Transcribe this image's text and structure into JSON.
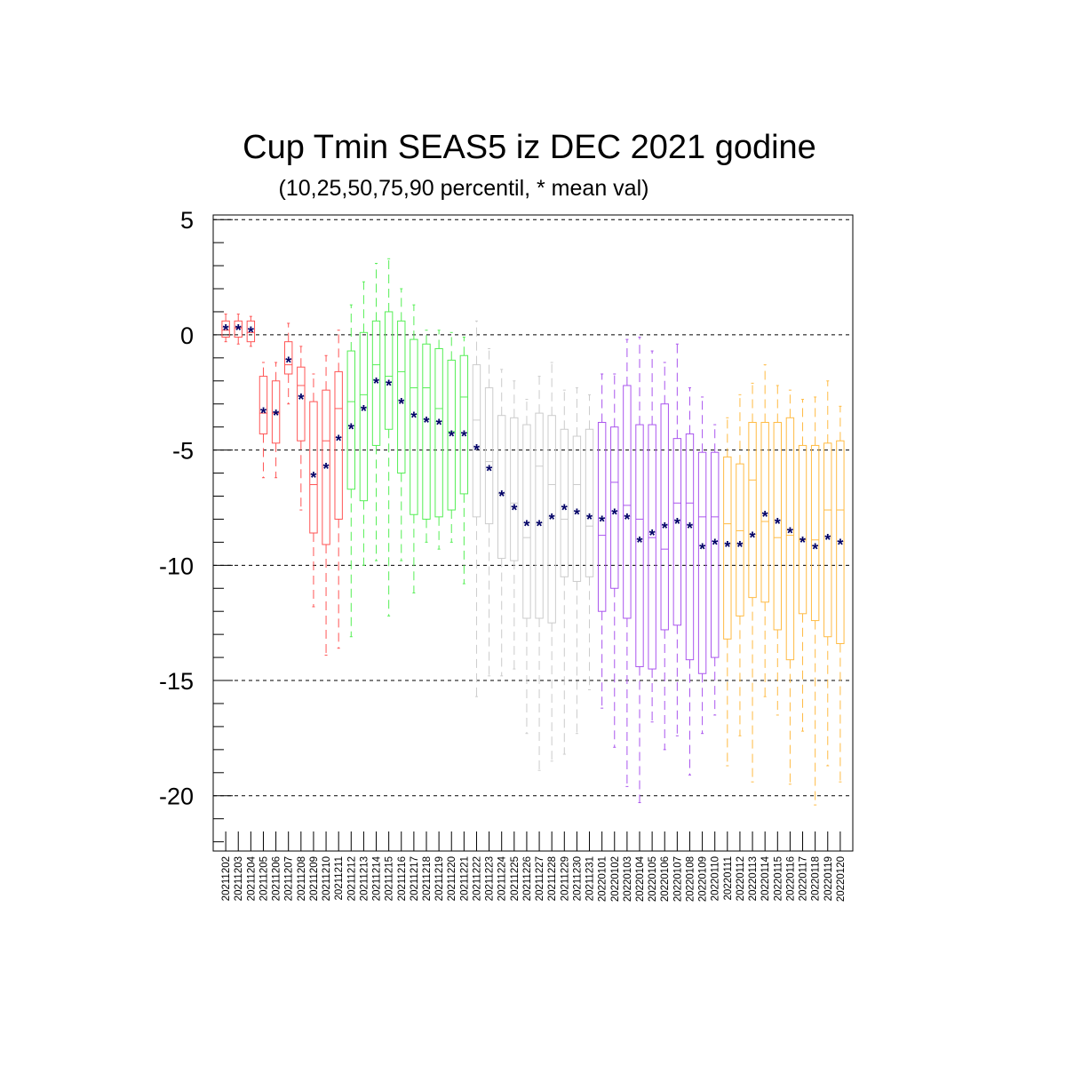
{
  "chart_data": {
    "type": "boxplot",
    "title": "Cup Tmin SEAS5 iz DEC 2021 godine",
    "subtitle": "(10,25,50,75,90 percentil, * mean val)",
    "ylim": [
      -22.4,
      5.2
    ],
    "yticks": [
      5,
      0,
      -5,
      -10,
      -15,
      -20
    ],
    "ytick_labels": [
      "5",
      "0",
      "-5",
      "-10",
      "-15",
      "-20"
    ],
    "grid": "dashed horizontal at major ticks",
    "mean_marker": "*",
    "mean_color": "#000066",
    "categories": [
      "20211202",
      "20211203",
      "20211204",
      "20211205",
      "20211206",
      "20211207",
      "20211208",
      "20211209",
      "20211210",
      "20211211",
      "20211212",
      "20211213",
      "20211214",
      "20211215",
      "20211216",
      "20211217",
      "20211218",
      "20211219",
      "20211220",
      "20211221",
      "20211222",
      "20211223",
      "20211224",
      "20211225",
      "20211226",
      "20211227",
      "20211228",
      "20211229",
      "20211230",
      "20211231",
      "20220101",
      "20220102",
      "20220103",
      "20220104",
      "20220105",
      "20220106",
      "20220107",
      "20220108",
      "20220109",
      "20220110",
      "20220111",
      "20220112",
      "20220113",
      "20220114",
      "20220115",
      "20220116",
      "20220117",
      "20220118",
      "20220119",
      "20220120"
    ],
    "colors": [
      "#ff5555",
      "#ff5555",
      "#ff5555",
      "#ff5555",
      "#ff5555",
      "#ff5555",
      "#ff5555",
      "#ff5555",
      "#ff5555",
      "#ff5555",
      "#55ee55",
      "#55ee55",
      "#55ee55",
      "#55ee55",
      "#55ee55",
      "#55ee55",
      "#55ee55",
      "#55ee55",
      "#55ee55",
      "#55ee55",
      "#cccccc",
      "#cccccc",
      "#cccccc",
      "#cccccc",
      "#cccccc",
      "#cccccc",
      "#cccccc",
      "#cccccc",
      "#cccccc",
      "#cccccc",
      "#aa55ee",
      "#aa55ee",
      "#aa55ee",
      "#aa55ee",
      "#aa55ee",
      "#aa55ee",
      "#aa55ee",
      "#aa55ee",
      "#aa55ee",
      "#aa55ee",
      "#ffbb44",
      "#ffbb44",
      "#ffbb44",
      "#ffbb44",
      "#ffbb44",
      "#ffbb44",
      "#ffbb44",
      "#ffbb44",
      "#ffbb44",
      "#ffbb44"
    ],
    "p10": [
      -0.3,
      -0.4,
      -0.5,
      -6.2,
      -6.2,
      -3.0,
      -7.6,
      -11.8,
      -13.9,
      -13.6,
      -13.1,
      -10.0,
      -9.8,
      -12.2,
      -9.8,
      -11.2,
      -9.0,
      -9.3,
      -9.0,
      -10.8,
      -15.7,
      -14.8,
      -14.8,
      -14.5,
      -17.3,
      -18.9,
      -18.5,
      -18.2,
      -17.3,
      -15.4,
      -16.2,
      -17.9,
      -19.6,
      -20.3,
      -16.8,
      -18.0,
      -17.4,
      -19.1,
      -17.3,
      -16.5,
      -18.7,
      -17.4,
      -19.4,
      -15.7,
      -16.5,
      -19.5,
      -17.2,
      -20.4,
      -18.7,
      -19.4
    ],
    "p25": [
      -0.1,
      -0.1,
      -0.3,
      -4.3,
      -4.7,
      -1.7,
      -4.6,
      -8.6,
      -9.1,
      -8.0,
      -6.7,
      -7.2,
      -4.8,
      -4.1,
      -6.0,
      -7.8,
      -8.0,
      -7.9,
      -7.6,
      -6.9,
      -7.9,
      -8.2,
      -9.7,
      -9.8,
      -12.3,
      -12.3,
      -12.5,
      -10.5,
      -10.7,
      -10.5,
      -12.0,
      -11.0,
      -12.3,
      -14.4,
      -14.5,
      -12.8,
      -12.6,
      -14.1,
      -14.7,
      -14.0,
      -13.2,
      -12.2,
      -11.4,
      -11.6,
      -12.8,
      -14.1,
      -12.1,
      -12.4,
      -13.1,
      -13.4
    ],
    "p50": [
      0.2,
      0.3,
      0.1,
      -3.4,
      -3.4,
      -1.3,
      -2.2,
      -6.5,
      -4.6,
      -3.2,
      -2.9,
      -2.6,
      -1.3,
      -1.8,
      -1.6,
      -2.3,
      -2.3,
      -3.2,
      -4.2,
      -2.7,
      -3.7,
      -5.5,
      -6.9,
      -7.3,
      -8.8,
      -5.7,
      -6.5,
      -8.0,
      -6.5,
      -8.3,
      -8.7,
      -6.4,
      -7.4,
      -8.0,
      -8.8,
      -9.3,
      -7.3,
      -7.3,
      -7.9,
      -7.9,
      -8.2,
      -8.5,
      -6.3,
      -8.1,
      -8.8,
      -8.7,
      -8.9,
      -8.9,
      -7.6,
      -7.6
    ],
    "p75": [
      0.6,
      0.6,
      0.6,
      -1.8,
      -2.0,
      -0.3,
      -1.4,
      -2.9,
      -2.4,
      -1.6,
      -0.7,
      0.1,
      0.6,
      1.0,
      0.6,
      -0.2,
      -0.4,
      -0.6,
      -1.1,
      -0.9,
      -1.3,
      -2.3,
      -3.5,
      -3.6,
      -3.9,
      -3.4,
      -3.5,
      -4.1,
      -4.4,
      -4.1,
      -3.8,
      -4.0,
      -2.2,
      -3.9,
      -3.9,
      -3.0,
      -4.5,
      -4.3,
      -5.1,
      -5.1,
      -5.3,
      -5.6,
      -3.8,
      -3.8,
      -3.8,
      -3.6,
      -4.8,
      -4.8,
      -4.7,
      -4.6
    ],
    "p90": [
      0.9,
      0.9,
      0.8,
      -1.2,
      -1.2,
      0.5,
      -0.5,
      -1.7,
      -0.9,
      0.2,
      1.3,
      2.3,
      3.1,
      3.3,
      2.0,
      1.3,
      0.2,
      0.2,
      0.1,
      -0.1,
      0.6,
      -0.6,
      -1.5,
      -2.0,
      -2.8,
      -1.8,
      -1.2,
      -2.4,
      -2.3,
      -2.6,
      -1.7,
      -1.7,
      -0.2,
      -0.1,
      -0.7,
      -1.2,
      -0.4,
      -2.3,
      -2.7,
      -3.9,
      -3.6,
      -2.6,
      -2.1,
      -1.3,
      -2.2,
      -2.4,
      -2.8,
      -2.7,
      -2.0,
      -3.1
    ],
    "mean": [
      0.3,
      0.3,
      0.2,
      -3.3,
      -3.4,
      -1.1,
      -2.7,
      -6.1,
      -5.7,
      -4.5,
      -4.0,
      -3.2,
      -2.0,
      -2.1,
      -2.9,
      -3.5,
      -3.7,
      -3.8,
      -4.3,
      -4.3,
      -4.9,
      -5.8,
      -6.9,
      -7.5,
      -8.2,
      -8.2,
      -7.9,
      -7.5,
      -7.7,
      -7.9,
      -8.0,
      -7.7,
      -7.9,
      -8.9,
      -8.6,
      -8.3,
      -8.1,
      -8.3,
      -9.2,
      -9.0,
      -9.1,
      -9.1,
      -8.7,
      -7.8,
      -8.1,
      -8.5,
      -8.9,
      -9.2,
      -8.8,
      -9.0
    ]
  }
}
